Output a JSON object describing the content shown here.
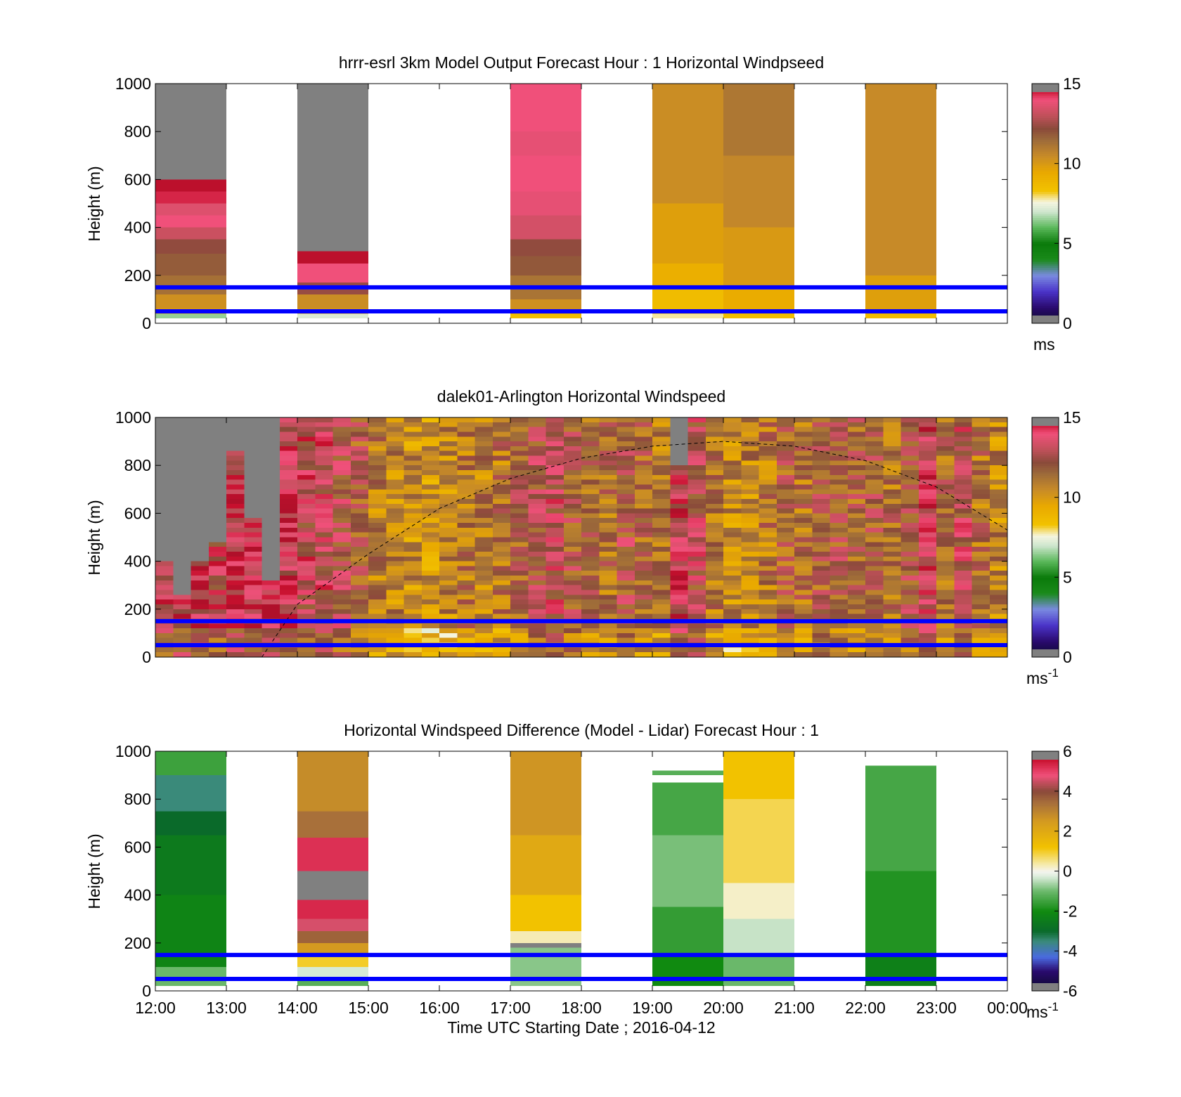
{
  "figure": {
    "xlabel": "Time UTC  Starting Date ; 2016-04-12"
  },
  "colors": {
    "reference_line": "#0000ff",
    "missing": "#808080",
    "speed_colormap": [
      [
        0,
        "#0a0a2a"
      ],
      [
        1,
        "#2a0a6e"
      ],
      [
        2,
        "#4a32c8"
      ],
      [
        3,
        "#7a8ae0"
      ],
      [
        4,
        "#1a8a1a"
      ],
      [
        5,
        "#0a7a0a"
      ],
      [
        6,
        "#5ab85a"
      ],
      [
        7,
        "#cfe6cf"
      ],
      [
        7.6,
        "#f5f5e0"
      ],
      [
        8.3,
        "#f2c200"
      ],
      [
        9.5,
        "#e8a800"
      ],
      [
        10.5,
        "#c78a28"
      ],
      [
        11.5,
        "#9c6a3a"
      ],
      [
        12.2,
        "#8a4a3a"
      ],
      [
        13,
        "#c0505a"
      ],
      [
        14,
        "#f0507a"
      ],
      [
        14.6,
        "#c8102e"
      ],
      [
        15,
        "#b0102a"
      ]
    ],
    "diff_colormap": [
      [
        -6,
        "#0a0a2a"
      ],
      [
        -5,
        "#2a0a6e"
      ],
      [
        -4.3,
        "#4a6ae0"
      ],
      [
        -3.5,
        "#3a8a7a"
      ],
      [
        -3,
        "#0a6a2a"
      ],
      [
        -2,
        "#108a10"
      ],
      [
        -1,
        "#6ab86a"
      ],
      [
        -0.3,
        "#d6ead6"
      ],
      [
        0,
        "#f5f5f0"
      ],
      [
        0.4,
        "#f5e8a0"
      ],
      [
        1.2,
        "#f2c200"
      ],
      [
        2.5,
        "#d49a20"
      ],
      [
        3.4,
        "#a8703a"
      ],
      [
        4,
        "#8a4a3a"
      ],
      [
        4.8,
        "#f0507a"
      ],
      [
        5.6,
        "#c8102e"
      ],
      [
        6,
        "#b0102a"
      ]
    ]
  },
  "chart_data": [
    {
      "type": "heatmap",
      "title": "hrrr-esrl 3km Model Output   Forecast Hour : 1 Horizontal Windpseed",
      "ylabel": "Height (m)",
      "xlabel": "",
      "x_ticks": [
        "12:00",
        "13:00",
        "14:00",
        "15:00",
        "16:00",
        "17:00",
        "18:00",
        "19:00",
        "20:00",
        "21:00",
        "22:00",
        "23:00",
        "00:00"
      ],
      "x_tick_labels_shown": false,
      "xlim_hours": [
        12,
        24
      ],
      "ylim": [
        0,
        1000
      ],
      "y_ticks": [
        0,
        200,
        400,
        600,
        800,
        1000
      ],
      "reference_lines_m": [
        150,
        50
      ],
      "colorbar": {
        "range": [
          0,
          15
        ],
        "ticks": [
          0,
          5,
          10,
          15
        ],
        "label": "ms",
        "colormap": "speed"
      },
      "columns": [
        {
          "start_hour": 12,
          "end_hour": 13,
          "levels": [
            {
              "from": 20,
              "to": 40,
              "value": 6.5
            },
            {
              "from": 40,
              "to": 60,
              "value": 9.5
            },
            {
              "from": 60,
              "to": 120,
              "value": 10.3
            },
            {
              "from": 120,
              "to": 200,
              "value": 11.3
            },
            {
              "from": 200,
              "to": 290,
              "value": 11.8
            },
            {
              "from": 290,
              "to": 350,
              "value": 12.3
            },
            {
              "from": 350,
              "to": 400,
              "value": 13.2
            },
            {
              "from": 400,
              "to": 450,
              "value": 14.0
            },
            {
              "from": 450,
              "to": 500,
              "value": 13.6
            },
            {
              "from": 500,
              "to": 550,
              "value": 14.4
            },
            {
              "from": 550,
              "to": 600,
              "value": 14.8
            },
            {
              "from": 600,
              "to": 1000,
              "missing": true
            }
          ]
        },
        {
          "start_hour": 14,
          "end_hour": 15,
          "levels": [
            {
              "from": 20,
              "to": 40,
              "value": 7.2
            },
            {
              "from": 40,
              "to": 60,
              "value": 9.5
            },
            {
              "from": 60,
              "to": 120,
              "value": 10.4
            },
            {
              "from": 120,
              "to": 170,
              "value": 12.4
            },
            {
              "from": 170,
              "to": 250,
              "value": 14.0
            },
            {
              "from": 250,
              "to": 300,
              "value": 14.8
            },
            {
              "from": 300,
              "to": 1000,
              "missing": true
            }
          ]
        },
        {
          "start_hour": 17,
          "end_hour": 18,
          "levels": [
            {
              "from": 20,
              "to": 40,
              "value": 8.5
            },
            {
              "from": 40,
              "to": 100,
              "value": 10.3
            },
            {
              "from": 100,
              "to": 200,
              "value": 11.2
            },
            {
              "from": 200,
              "to": 280,
              "value": 11.9
            },
            {
              "from": 280,
              "to": 350,
              "value": 12.3
            },
            {
              "from": 350,
              "to": 450,
              "value": 13.4
            },
            {
              "from": 450,
              "to": 550,
              "value": 13.8
            },
            {
              "from": 550,
              "to": 700,
              "value": 14.0
            },
            {
              "from": 700,
              "to": 800,
              "value": 13.8
            },
            {
              "from": 800,
              "to": 1000,
              "value": 14.0
            }
          ]
        },
        {
          "start_hour": 19,
          "end_hour": 20,
          "levels": [
            {
              "from": 20,
              "to": 40,
              "value": 7.8
            },
            {
              "from": 40,
              "to": 150,
              "value": 8.6
            },
            {
              "from": 150,
              "to": 250,
              "value": 9.2
            },
            {
              "from": 250,
              "to": 500,
              "value": 9.8
            },
            {
              "from": 500,
              "to": 1000,
              "value": 10.4
            }
          ]
        },
        {
          "start_hour": 20,
          "end_hour": 21,
          "levels": [
            {
              "from": 20,
              "to": 40,
              "value": 8.5
            },
            {
              "from": 40,
              "to": 150,
              "value": 9.3
            },
            {
              "from": 150,
              "to": 400,
              "value": 10.0
            },
            {
              "from": 400,
              "to": 700,
              "value": 10.6
            },
            {
              "from": 700,
              "to": 1000,
              "value": 11.1
            }
          ]
        },
        {
          "start_hour": 22,
          "end_hour": 23,
          "levels": [
            {
              "from": 20,
              "to": 40,
              "value": 8.6
            },
            {
              "from": 40,
              "to": 200,
              "value": 9.8
            },
            {
              "from": 200,
              "to": 1000,
              "value": 10.5
            }
          ]
        }
      ]
    },
    {
      "type": "heatmap",
      "title": "dalek01-Arlington  Horizontal Windspeed",
      "ylabel": "Height (m)",
      "xlabel": "",
      "x_ticks": [
        "12:00",
        "13:00",
        "14:00",
        "15:00",
        "16:00",
        "17:00",
        "18:00",
        "19:00",
        "20:00",
        "21:00",
        "22:00",
        "23:00",
        "00:00"
      ],
      "x_tick_labels_shown": false,
      "xlim_hours": [
        12,
        24
      ],
      "ylim": [
        0,
        1000
      ],
      "y_ticks": [
        0,
        200,
        400,
        600,
        800,
        1000
      ],
      "reference_lines_m": [
        150,
        50
      ],
      "boundary_layer_curve_m": [
        [
          13.5,
          0
        ],
        [
          14,
          220
        ],
        [
          15,
          430
        ],
        [
          16,
          620
        ],
        [
          17,
          745
        ],
        [
          18,
          830
        ],
        [
          19,
          880
        ],
        [
          20,
          900
        ],
        [
          21,
          880
        ],
        [
          22,
          820
        ],
        [
          23,
          710
        ],
        [
          24,
          530
        ]
      ],
      "colorbar": {
        "range": [
          0,
          15
        ],
        "ticks": [
          0,
          5,
          10,
          15
        ],
        "label": "ms-1",
        "colormap": "speed"
      },
      "time_profiles": [
        {
          "hour": 12.0,
          "mean": 13.4,
          "missing_above_m": 400
        },
        {
          "hour": 12.25,
          "mean": 13.6,
          "missing_above_m": 250
        },
        {
          "hour": 12.5,
          "mean": 13.8,
          "missing_above_m": 390
        },
        {
          "hour": 12.75,
          "mean": 13.2,
          "missing_above_m": 480
        },
        {
          "hour": 13.0,
          "mean": 14.0,
          "missing_above_m": 850
        },
        {
          "hour": 13.25,
          "mean": 13.9,
          "missing_above_m": 580
        },
        {
          "hour": 13.5,
          "mean": 14.2,
          "missing_above_m": 310
        },
        {
          "hour": 13.75,
          "mean": 13.6
        },
        {
          "hour": 14.0,
          "mean": 13.1
        },
        {
          "hour": 14.25,
          "mean": 13.3
        },
        {
          "hour": 14.5,
          "mean": 12.6
        },
        {
          "hour": 14.75,
          "mean": 12.0
        },
        {
          "hour": 15.0,
          "mean": 10.9
        },
        {
          "hour": 15.25,
          "mean": 10.6
        },
        {
          "hour": 15.5,
          "mean": 10.3
        },
        {
          "hour": 15.75,
          "mean": 10.0
        },
        {
          "hour": 16.0,
          "mean": 10.4
        },
        {
          "hour": 16.25,
          "mean": 11.1
        },
        {
          "hour": 16.5,
          "mean": 10.8
        },
        {
          "hour": 16.75,
          "mean": 11.2
        },
        {
          "hour": 17.0,
          "mean": 11.8
        },
        {
          "hour": 17.25,
          "mean": 12.5
        },
        {
          "hour": 17.5,
          "mean": 12.9
        },
        {
          "hour": 17.75,
          "mean": 12.1
        },
        {
          "hour": 18.0,
          "mean": 11.6
        },
        {
          "hour": 18.25,
          "mean": 11.4
        },
        {
          "hour": 18.5,
          "mean": 12.4
        },
        {
          "hour": 18.75,
          "mean": 11.7
        },
        {
          "hour": 19.0,
          "mean": 11.2
        },
        {
          "hour": 19.25,
          "mean": 13.8,
          "missing_above_m": 800
        },
        {
          "hour": 19.5,
          "mean": 12.8
        },
        {
          "hour": 19.75,
          "mean": 11.0
        },
        {
          "hour": 20.0,
          "mean": 10.4
        },
        {
          "hour": 20.25,
          "mean": 10.6
        },
        {
          "hour": 20.5,
          "mean": 11.1
        },
        {
          "hour": 20.75,
          "mean": 11.8
        },
        {
          "hour": 21.0,
          "mean": 11.4
        },
        {
          "hour": 21.25,
          "mean": 11.9
        },
        {
          "hour": 21.5,
          "mean": 12.1
        },
        {
          "hour": 21.75,
          "mean": 11.8
        },
        {
          "hour": 22.0,
          "mean": 12.0
        },
        {
          "hour": 22.25,
          "mean": 11.4
        },
        {
          "hour": 22.5,
          "mean": 12.4
        },
        {
          "hour": 22.75,
          "mean": 14.0
        },
        {
          "hour": 23.0,
          "mean": 11.6
        },
        {
          "hour": 23.25,
          "mean": 12.8
        },
        {
          "hour": 23.5,
          "mean": 11.3
        },
        {
          "hour": 23.75,
          "mean": 10.6
        }
      ]
    },
    {
      "type": "heatmap",
      "title": "Horizontal Windspeed Difference (Model - Lidar) Forecast Hour : 1",
      "ylabel": "Height (m)",
      "xlabel": "Time UTC  Starting Date ; 2016-04-12",
      "x_ticks": [
        "12:00",
        "13:00",
        "14:00",
        "15:00",
        "16:00",
        "17:00",
        "18:00",
        "19:00",
        "20:00",
        "21:00",
        "22:00",
        "23:00",
        "00:00"
      ],
      "x_tick_labels_shown": true,
      "xlim_hours": [
        12,
        24
      ],
      "ylim": [
        0,
        1000
      ],
      "y_ticks": [
        0,
        200,
        400,
        600,
        800,
        1000
      ],
      "reference_lines_m": [
        150,
        50
      ],
      "colorbar": {
        "range": [
          -6,
          6
        ],
        "ticks": [
          -6,
          -4,
          -2,
          0,
          2,
          4,
          6
        ],
        "label": "ms-1",
        "colormap": "diff"
      },
      "columns": [
        {
          "start_hour": 12,
          "end_hour": 13,
          "levels": [
            {
              "from": 20,
              "to": 100,
              "value": -1.0
            },
            {
              "from": 100,
              "to": 400,
              "value": -2.2
            },
            {
              "from": 400,
              "to": 650,
              "value": -2.5
            },
            {
              "from": 650,
              "to": 750,
              "value": -3.0
            },
            {
              "from": 750,
              "to": 900,
              "value": -3.5
            },
            {
              "from": 900,
              "to": 1000,
              "value": -1.5
            }
          ]
        },
        {
          "start_hour": 14,
          "end_hour": 15,
          "levels": [
            {
              "from": 20,
              "to": 50,
              "value": -1.2
            },
            {
              "from": 50,
              "to": 100,
              "value": -0.3
            },
            {
              "from": 100,
              "to": 150,
              "value": 1.0
            },
            {
              "from": 150,
              "to": 200,
              "value": 2.5
            },
            {
              "from": 200,
              "to": 250,
              "value": 3.6
            },
            {
              "from": 250,
              "to": 300,
              "value": 4.6
            },
            {
              "from": 300,
              "to": 380,
              "value": 5.3
            },
            {
              "from": 380,
              "to": 500,
              "missing": true
            },
            {
              "from": 500,
              "to": 640,
              "value": 5.2
            },
            {
              "from": 640,
              "to": 750,
              "value": 3.4
            },
            {
              "from": 750,
              "to": 1000,
              "value": 2.8
            }
          ]
        },
        {
          "start_hour": 17,
          "end_hour": 18,
          "levels": [
            {
              "from": 20,
              "to": 180,
              "value": -0.8
            },
            {
              "from": 180,
              "to": 200,
              "missing": true
            },
            {
              "from": 200,
              "to": 250,
              "value": 0.3
            },
            {
              "from": 250,
              "to": 400,
              "value": 1.2
            },
            {
              "from": 400,
              "to": 650,
              "value": 2.0
            },
            {
              "from": 650,
              "to": 1000,
              "value": 2.6
            }
          ]
        },
        {
          "start_hour": 19,
          "end_hour": 20,
          "levels": [
            {
              "from": 20,
              "to": 150,
              "value": -2.0
            },
            {
              "from": 150,
              "to": 350,
              "value": -1.6
            },
            {
              "from": 350,
              "to": 650,
              "value": -0.9
            },
            {
              "from": 650,
              "to": 870,
              "value": -1.4
            },
            {
              "from": 900,
              "to": 920,
              "value": -1.2
            }
          ]
        },
        {
          "start_hour": 20,
          "end_hour": 21,
          "levels": [
            {
              "from": 20,
              "to": 150,
              "value": -1.0
            },
            {
              "from": 150,
              "to": 300,
              "value": -0.4
            },
            {
              "from": 300,
              "to": 450,
              "value": 0.2
            },
            {
              "from": 450,
              "to": 800,
              "value": 0.8
            },
            {
              "from": 800,
              "to": 1000,
              "value": 1.2
            }
          ]
        },
        {
          "start_hour": 22,
          "end_hour": 23,
          "levels": [
            {
              "from": 20,
              "to": 150,
              "value": -2.3
            },
            {
              "from": 150,
              "to": 500,
              "value": -1.8
            },
            {
              "from": 500,
              "to": 940,
              "value": -1.4
            }
          ]
        }
      ]
    }
  ]
}
